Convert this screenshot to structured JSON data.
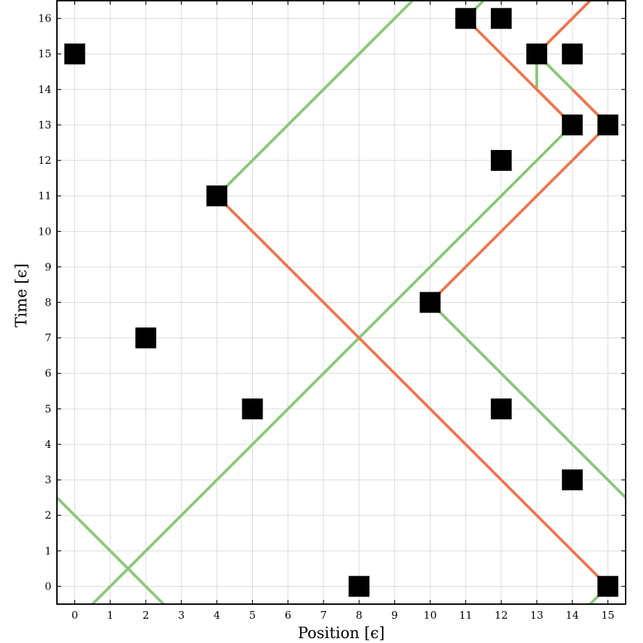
{
  "chart_data": {
    "type": "scatter",
    "title": "",
    "xlabel": "Position [ϵ]",
    "ylabel": "Time [ϵ]",
    "xlim": [
      -0.5,
      15.5
    ],
    "ylim": [
      -0.5,
      16.5
    ],
    "x_ticks": [
      0,
      1,
      2,
      3,
      4,
      5,
      6,
      7,
      8,
      9,
      10,
      11,
      12,
      13,
      14,
      15
    ],
    "y_ticks": [
      0,
      1,
      2,
      3,
      4,
      5,
      6,
      7,
      8,
      9,
      10,
      11,
      12,
      13,
      14,
      15,
      16
    ],
    "grid": true,
    "colors": {
      "green": "#88c878",
      "orange": "#ee7650",
      "marker": "#000000"
    },
    "markers": [
      {
        "x": 0,
        "y": 15
      },
      {
        "x": 2,
        "y": 7
      },
      {
        "x": 4,
        "y": 11
      },
      {
        "x": 5,
        "y": 5
      },
      {
        "x": 8,
        "y": 0
      },
      {
        "x": 10,
        "y": 8
      },
      {
        "x": 11,
        "y": 16
      },
      {
        "x": 12,
        "y": 16
      },
      {
        "x": 12,
        "y": 12
      },
      {
        "x": 12,
        "y": 5
      },
      {
        "x": 13,
        "y": 15
      },
      {
        "x": 14,
        "y": 15
      },
      {
        "x": 14,
        "y": 13
      },
      {
        "x": 14,
        "y": 3
      },
      {
        "x": 15,
        "y": 13
      },
      {
        "x": 15,
        "y": 0
      }
    ],
    "series": [
      {
        "color": "green",
        "points": [
          [
            -0.5,
            2.5
          ],
          [
            2.5,
            -0.5
          ]
        ]
      },
      {
        "color": "green",
        "points": [
          [
            0.5,
            -0.5
          ],
          [
            14,
            13
          ],
          [
            13,
            14
          ],
          [
            13,
            15
          ],
          [
            14.5,
            16.5
          ]
        ]
      },
      {
        "color": "green",
        "points": [
          [
            14.5,
            -0.5
          ],
          [
            15,
            0
          ]
        ]
      },
      {
        "color": "green",
        "points": [
          [
            15.5,
            2.5
          ],
          [
            10,
            8
          ]
        ]
      },
      {
        "color": "green",
        "points": [
          [
            4,
            11
          ],
          [
            9.5,
            16.5
          ]
        ]
      },
      {
        "color": "green",
        "points": [
          [
            11,
            16
          ],
          [
            11.5,
            16.5
          ]
        ]
      },
      {
        "color": "green",
        "points": [
          [
            13,
            15
          ],
          [
            15,
            13
          ]
        ]
      },
      {
        "color": "orange",
        "points": [
          [
            15,
            0
          ],
          [
            4,
            11
          ]
        ]
      },
      {
        "color": "orange",
        "points": [
          [
            10,
            8
          ],
          [
            15,
            13
          ]
        ]
      },
      {
        "color": "orange",
        "points": [
          [
            15,
            13
          ],
          [
            14,
            14
          ]
        ]
      },
      {
        "color": "orange",
        "points": [
          [
            11,
            16
          ],
          [
            14,
            13
          ]
        ]
      },
      {
        "color": "orange",
        "points": [
          [
            13,
            15
          ],
          [
            14.5,
            16.5
          ]
        ]
      }
    ]
  }
}
